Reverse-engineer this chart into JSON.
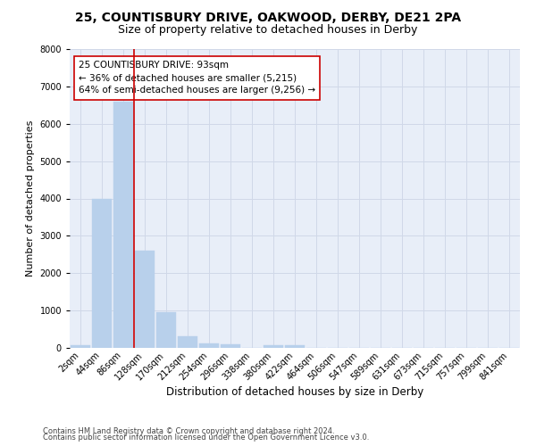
{
  "title1": "25, COUNTISBURY DRIVE, OAKWOOD, DERBY, DE21 2PA",
  "title2": "Size of property relative to detached houses in Derby",
  "xlabel": "Distribution of detached houses by size in Derby",
  "ylabel": "Number of detached properties",
  "categories": [
    "2sqm",
    "44sqm",
    "86sqm",
    "128sqm",
    "170sqm",
    "212sqm",
    "254sqm",
    "296sqm",
    "338sqm",
    "380sqm",
    "422sqm",
    "464sqm",
    "506sqm",
    "547sqm",
    "589sqm",
    "631sqm",
    "673sqm",
    "715sqm",
    "757sqm",
    "799sqm",
    "841sqm"
  ],
  "values": [
    75,
    4000,
    6600,
    2600,
    950,
    300,
    130,
    100,
    0,
    75,
    75,
    0,
    0,
    0,
    0,
    0,
    0,
    0,
    0,
    0,
    0
  ],
  "bar_color": "#b8d0eb",
  "grid_color": "#d0d8e8",
  "background_color": "#e8eef8",
  "vline_color": "#cc0000",
  "annotation_text": "25 COUNTISBURY DRIVE: 93sqm\n← 36% of detached houses are smaller (5,215)\n64% of semi-detached houses are larger (9,256) →",
  "annotation_box_color": "#ffffff",
  "annotation_box_edgecolor": "#cc0000",
  "ylim": [
    0,
    8000
  ],
  "yticks": [
    0,
    1000,
    2000,
    3000,
    4000,
    5000,
    6000,
    7000,
    8000
  ],
  "footnote1": "Contains HM Land Registry data © Crown copyright and database right 2024.",
  "footnote2": "Contains public sector information licensed under the Open Government Licence v3.0.",
  "title1_fontsize": 10,
  "title2_fontsize": 9,
  "xlabel_fontsize": 8.5,
  "ylabel_fontsize": 8,
  "tick_fontsize": 7,
  "annotation_fontsize": 7.5,
  "footnote_fontsize": 6
}
